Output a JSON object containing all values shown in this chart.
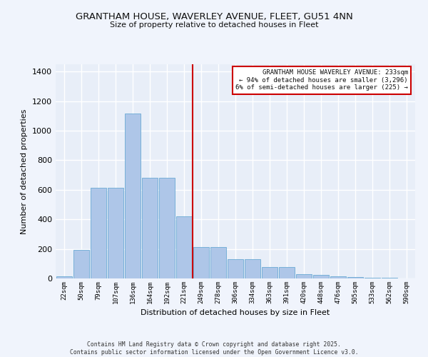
{
  "title_line1": "GRANTHAM HOUSE, WAVERLEY AVENUE, FLEET, GU51 4NN",
  "title_line2": "Size of property relative to detached houses in Fleet",
  "xlabel": "Distribution of detached houses by size in Fleet",
  "ylabel": "Number of detached properties",
  "categories": [
    "22sqm",
    "50sqm",
    "79sqm",
    "107sqm",
    "136sqm",
    "164sqm",
    "192sqm",
    "221sqm",
    "249sqm",
    "278sqm",
    "306sqm",
    "334sqm",
    "363sqm",
    "391sqm",
    "420sqm",
    "448sqm",
    "476sqm",
    "505sqm",
    "533sqm",
    "562sqm",
    "590sqm"
  ],
  "values": [
    15,
    195,
    615,
    615,
    1115,
    680,
    680,
    420,
    215,
    215,
    130,
    130,
    75,
    75,
    30,
    25,
    15,
    10,
    5,
    3,
    1
  ],
  "bar_color": "#aec6e8",
  "bar_edge_color": "#6aaad4",
  "bg_color": "#e8eef8",
  "grid_color": "#ffffff",
  "annotation_text": "GRANTHAM HOUSE WAVERLEY AVENUE: 233sqm\n← 94% of detached houses are smaller (3,296)\n6% of semi-detached houses are larger (225) →",
  "vline_color": "#cc0000",
  "annotation_box_color": "#ffffff",
  "annotation_box_edge": "#cc0000",
  "footer_text": "Contains HM Land Registry data © Crown copyright and database right 2025.\nContains public sector information licensed under the Open Government Licence v3.0.",
  "ylim": [
    0,
    1450
  ],
  "yticks": [
    0,
    200,
    400,
    600,
    800,
    1000,
    1200,
    1400
  ],
  "fig_bg_color": "#f0f4fc"
}
